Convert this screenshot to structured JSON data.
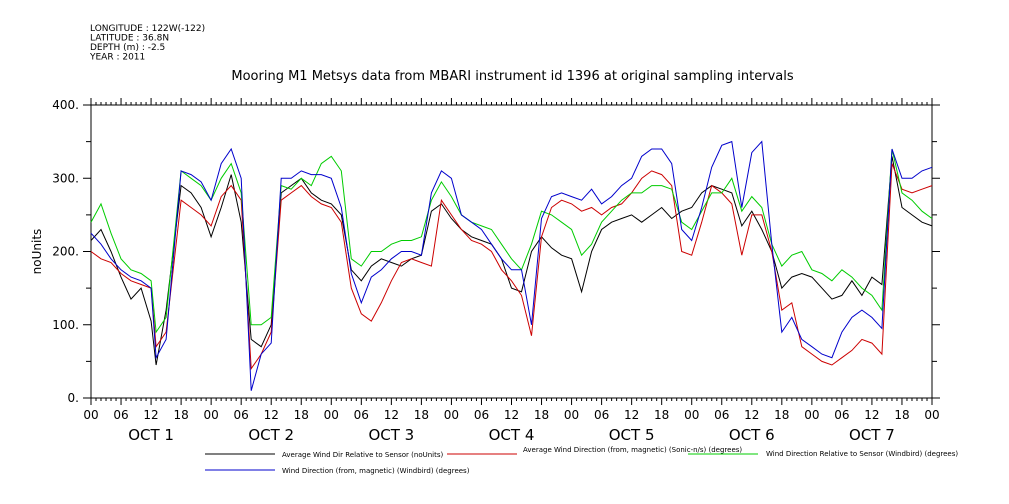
{
  "header": {
    "meta_lines": [
      "LONGITUDE : 122W(-122)",
      "LATITUDE : 36.8N",
      "DEPTH (m) : -2.5",
      "YEAR : 2011"
    ]
  },
  "chart_data": {
    "type": "line",
    "title": "Mooring M1 Metsys data from MBARI instrument id 1396 at original sampling intervals",
    "xlabel": "",
    "ylabel": "noUnits",
    "ylim": [
      0,
      400
    ],
    "yticks": [
      "0.",
      "100.",
      "200.",
      "300.",
      "400."
    ],
    "xlim": [
      0,
      168
    ],
    "xticks": [
      "00",
      "06",
      "12",
      "18",
      "00",
      "06",
      "12",
      "18",
      "00",
      "06",
      "12",
      "18",
      "00",
      "06",
      "12",
      "18",
      "00",
      "06",
      "12",
      "18",
      "00",
      "06",
      "12",
      "18",
      "00",
      "06",
      "12",
      "18",
      "00"
    ],
    "day_labels": [
      "OCT  1",
      "OCT  2",
      "OCT  3",
      "OCT  4",
      "OCT  5",
      "OCT  6",
      "OCT  7"
    ],
    "grid": false,
    "legend_position": "bottom",
    "x": [
      0,
      2,
      4,
      6,
      8,
      10,
      12,
      13,
      15,
      18,
      20,
      22,
      24,
      26,
      28,
      30,
      32,
      34,
      36,
      38,
      40,
      42,
      44,
      46,
      48,
      50,
      52,
      54,
      56,
      58,
      60,
      62,
      64,
      66,
      68,
      70,
      72,
      74,
      76,
      78,
      80,
      82,
      84,
      86,
      88,
      90,
      92,
      94,
      96,
      98,
      100,
      102,
      104,
      106,
      108,
      110,
      112,
      114,
      116,
      118,
      120,
      122,
      124,
      126,
      128,
      130,
      132,
      134,
      136,
      138,
      140,
      142,
      144,
      146,
      148,
      150,
      152,
      154,
      156,
      158,
      160,
      162,
      164,
      166,
      168
    ],
    "series": [
      {
        "name": "Average Wind Dir Relative to Sensor (noUnits)",
        "color": "#000000",
        "values": [
          215,
          230,
          200,
          165,
          135,
          150,
          105,
          45,
          120,
          290,
          280,
          260,
          220,
          260,
          305,
          240,
          80,
          70,
          100,
          280,
          290,
          300,
          280,
          270,
          265,
          250,
          175,
          160,
          180,
          190,
          185,
          180,
          190,
          195,
          255,
          265,
          245,
          230,
          220,
          215,
          210,
          190,
          150,
          145,
          200,
          220,
          205,
          195,
          190,
          145,
          200,
          230,
          240,
          245,
          250,
          240,
          250,
          260,
          245,
          255,
          260,
          280,
          290,
          285,
          280,
          235,
          255,
          230,
          200,
          150,
          165,
          170,
          165,
          150,
          135,
          140,
          160,
          140,
          165,
          155,
          330,
          260,
          250,
          240,
          235
        ]
      },
      {
        "name": "Average Wind Direction (from, magnetic) (Sonic-n/s) (degrees)",
        "color": "#cc0000",
        "values": [
          200,
          190,
          185,
          170,
          160,
          155,
          150,
          70,
          90,
          270,
          260,
          250,
          235,
          275,
          290,
          270,
          40,
          60,
          90,
          270,
          280,
          290,
          275,
          265,
          260,
          240,
          150,
          115,
          105,
          130,
          160,
          185,
          190,
          185,
          180,
          270,
          250,
          230,
          215,
          210,
          200,
          175,
          160,
          140,
          85,
          220,
          260,
          270,
          265,
          255,
          260,
          250,
          260,
          265,
          280,
          300,
          310,
          305,
          290,
          200,
          195,
          240,
          290,
          280,
          265,
          195,
          250,
          250,
          200,
          120,
          130,
          70,
          60,
          50,
          45,
          55,
          65,
          80,
          75,
          60,
          320,
          285,
          280,
          285,
          290
        ]
      },
      {
        "name": "Wind Direction Relative to Sensor (Windbird) (degrees)",
        "color": "#00cc00",
        "values": [
          240,
          265,
          225,
          190,
          175,
          170,
          160,
          90,
          110,
          310,
          300,
          290,
          270,
          300,
          320,
          280,
          100,
          100,
          110,
          290,
          285,
          300,
          290,
          320,
          330,
          310,
          190,
          180,
          200,
          200,
          210,
          215,
          215,
          220,
          270,
          295,
          275,
          250,
          240,
          235,
          230,
          210,
          190,
          175,
          210,
          255,
          250,
          240,
          230,
          195,
          210,
          240,
          255,
          270,
          280,
          280,
          290,
          290,
          285,
          240,
          230,
          255,
          280,
          280,
          300,
          255,
          275,
          260,
          210,
          180,
          195,
          200,
          175,
          170,
          160,
          175,
          165,
          150,
          140,
          120,
          340,
          280,
          270,
          255,
          245
        ]
      },
      {
        "name": "Wind Direction (from, magnetic) (Windbird) (degrees)",
        "color": "#0000cc",
        "values": [
          225,
          210,
          190,
          175,
          165,
          160,
          150,
          55,
          80,
          310,
          305,
          295,
          270,
          320,
          340,
          300,
          10,
          60,
          75,
          300,
          300,
          310,
          305,
          305,
          300,
          260,
          170,
          130,
          165,
          175,
          190,
          200,
          200,
          195,
          280,
          310,
          300,
          250,
          240,
          230,
          210,
          190,
          175,
          175,
          100,
          245,
          275,
          280,
          275,
          270,
          285,
          265,
          275,
          290,
          300,
          330,
          340,
          340,
          320,
          230,
          215,
          260,
          315,
          345,
          350,
          260,
          335,
          350,
          210,
          90,
          110,
          80,
          70,
          60,
          55,
          90,
          110,
          120,
          110,
          95,
          340,
          300,
          300,
          310,
          315
        ]
      }
    ]
  }
}
